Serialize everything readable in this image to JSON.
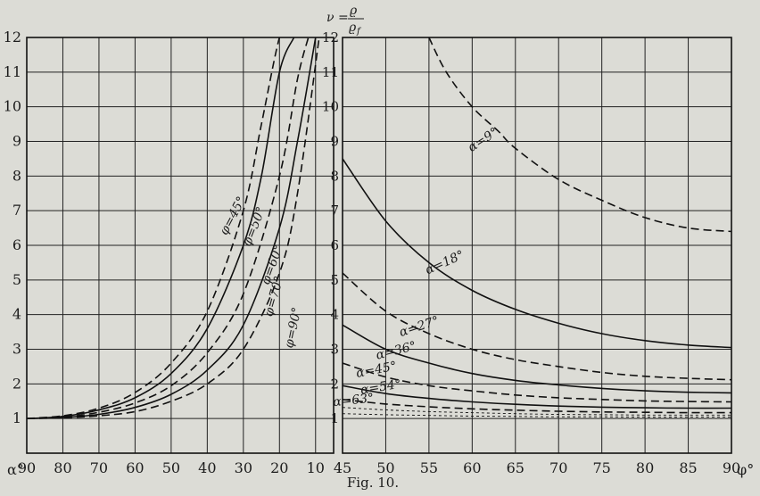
{
  "figure": {
    "caption": "Fig. 10."
  },
  "chart_data": [
    {
      "type": "line",
      "x_label": "α°",
      "x_ticks": [
        "90",
        "80",
        "70",
        "60",
        "50",
        "40",
        "30",
        "20",
        "10"
      ],
      "xlim": [
        90,
        5
      ],
      "y_ticks": [
        "1",
        "2",
        "3",
        "4",
        "5",
        "6",
        "7",
        "8",
        "9",
        "10",
        "11",
        "12"
      ],
      "ylim": [
        0,
        12
      ],
      "grid": true,
      "series": [
        {
          "name": "φ=45°",
          "style": "dashed",
          "x": [
            90,
            80,
            70,
            60,
            50,
            40,
            30,
            25,
            20,
            18
          ],
          "y": [
            1.0,
            1.08,
            1.3,
            1.75,
            2.6,
            4.1,
            7.0,
            9.5,
            12.0,
            12.0
          ]
        },
        {
          "name": "φ=50°",
          "style": "solid",
          "x": [
            90,
            80,
            70,
            60,
            50,
            40,
            30,
            25,
            20,
            16
          ],
          "y": [
            1.0,
            1.06,
            1.25,
            1.6,
            2.3,
            3.6,
            6.0,
            8.0,
            11.0,
            12.0
          ]
        },
        {
          "name": "φ=60°",
          "style": "dashed",
          "x": [
            90,
            80,
            70,
            60,
            50,
            40,
            30,
            20,
            15,
            12
          ],
          "y": [
            1.0,
            1.04,
            1.18,
            1.45,
            1.95,
            2.9,
            4.6,
            8.0,
            10.8,
            12.0
          ]
        },
        {
          "name": "φ=70°",
          "style": "solid",
          "x": [
            90,
            80,
            70,
            60,
            50,
            40,
            30,
            20,
            15,
            10
          ],
          "y": [
            1.0,
            1.03,
            1.12,
            1.32,
            1.7,
            2.4,
            3.7,
            6.5,
            9.0,
            12.0
          ]
        },
        {
          "name": "φ=90°",
          "style": "dashed",
          "x": [
            90,
            80,
            70,
            60,
            50,
            40,
            30,
            20,
            15,
            9
          ],
          "y": [
            1.0,
            1.02,
            1.08,
            1.2,
            1.5,
            2.0,
            3.0,
            5.2,
            7.5,
            12.0
          ]
        }
      ],
      "labels": [
        {
          "text": "φ=45°",
          "x": 32,
          "y": 6.8,
          "rot": -62
        },
        {
          "text": "φ=50°",
          "x": 26,
          "y": 6.5,
          "rot": -68
        },
        {
          "text": "φ=60°",
          "x": 21,
          "y": 5.4,
          "rot": -70
        },
        {
          "text": "φ=70°",
          "x": 20.5,
          "y": 4.5,
          "rot": -74
        },
        {
          "text": "φ=90°",
          "x": 15.2,
          "y": 3.6,
          "rot": -78
        }
      ]
    },
    {
      "type": "line",
      "y_label_lhs": "ν =",
      "y_label_num": "ϱ",
      "y_label_den": "ϱ",
      "y_label_sub": "f",
      "x_label": "φ°",
      "x_ticks": [
        "45",
        "50",
        "55",
        "60",
        "65",
        "70",
        "75",
        "80",
        "85",
        "90"
      ],
      "xlim": [
        45,
        90
      ],
      "y_ticks": [
        "1",
        "2",
        "3",
        "4",
        "5",
        "6",
        "7",
        "8",
        "9",
        "10",
        "11",
        "12"
      ],
      "ylim": [
        0,
        12
      ],
      "grid": true,
      "series": [
        {
          "name": "α=9°",
          "style": "dashed",
          "x": [
            55,
            57,
            60,
            63,
            65,
            70,
            75,
            80,
            85,
            90
          ],
          "y": [
            12.0,
            11.0,
            10.0,
            9.3,
            8.8,
            7.9,
            7.3,
            6.8,
            6.5,
            6.4
          ]
        },
        {
          "name": "α=18°",
          "style": "solid",
          "x": [
            45,
            50,
            55,
            60,
            65,
            70,
            75,
            80,
            85,
            90
          ],
          "y": [
            8.5,
            6.7,
            5.5,
            4.7,
            4.15,
            3.75,
            3.45,
            3.25,
            3.12,
            3.05
          ]
        },
        {
          "name": "α=27°",
          "style": "dashed",
          "x": [
            45,
            50,
            55,
            60,
            65,
            70,
            75,
            80,
            85,
            90
          ],
          "y": [
            5.2,
            4.1,
            3.45,
            3.0,
            2.7,
            2.5,
            2.33,
            2.22,
            2.16,
            2.12
          ]
        },
        {
          "name": "α=36°",
          "style": "solid",
          "x": [
            45,
            50,
            55,
            60,
            65,
            70,
            75,
            80,
            85,
            90
          ],
          "y": [
            3.7,
            3.0,
            2.6,
            2.3,
            2.1,
            1.97,
            1.87,
            1.8,
            1.76,
            1.74
          ]
        },
        {
          "name": "α=45°",
          "style": "dashed",
          "x": [
            45,
            50,
            55,
            60,
            65,
            70,
            75,
            80,
            85,
            90
          ],
          "y": [
            2.6,
            2.2,
            1.95,
            1.8,
            1.68,
            1.6,
            1.55,
            1.51,
            1.49,
            1.48
          ]
        },
        {
          "name": "α=54°",
          "style": "solid",
          "x": [
            45,
            50,
            55,
            60,
            65,
            70,
            75,
            80,
            85,
            90
          ],
          "y": [
            1.95,
            1.72,
            1.58,
            1.48,
            1.41,
            1.36,
            1.33,
            1.31,
            1.3,
            1.3
          ]
        },
        {
          "name": "α=63°",
          "style": "dashed",
          "x": [
            45,
            50,
            55,
            60,
            65,
            70,
            75,
            80,
            85,
            90
          ],
          "y": [
            1.55,
            1.42,
            1.34,
            1.28,
            1.24,
            1.21,
            1.19,
            1.18,
            1.17,
            1.17
          ]
        },
        {
          "name": "",
          "style": "faint",
          "x": [
            45,
            50,
            55,
            60,
            65,
            70,
            75,
            80,
            85,
            90
          ],
          "y": [
            1.32,
            1.25,
            1.2,
            1.17,
            1.14,
            1.12,
            1.11,
            1.1,
            1.1,
            1.1
          ]
        },
        {
          "name": "",
          "style": "faint",
          "x": [
            45,
            50,
            55,
            60,
            65,
            70,
            75,
            80,
            85,
            90
          ],
          "y": [
            1.14,
            1.11,
            1.09,
            1.07,
            1.06,
            1.05,
            1.05,
            1.04,
            1.04,
            1.04
          ]
        }
      ],
      "labels": [
        {
          "text": "α=9°",
          "x": 61.5,
          "y": 8.95,
          "rot": -33
        },
        {
          "text": "α=18°",
          "x": 57,
          "y": 5.4,
          "rot": -24
        },
        {
          "text": "α=27°",
          "x": 54,
          "y": 3.55,
          "rot": -18
        },
        {
          "text": "α=36°",
          "x": 51.3,
          "y": 2.85,
          "rot": -14
        },
        {
          "text": "α=45°",
          "x": 49,
          "y": 2.3,
          "rot": -11
        },
        {
          "text": "α=54°",
          "x": 49.5,
          "y": 1.8,
          "rot": -9
        },
        {
          "text": "α=63°",
          "x": 46.3,
          "y": 1.42,
          "rot": -6
        }
      ]
    }
  ]
}
